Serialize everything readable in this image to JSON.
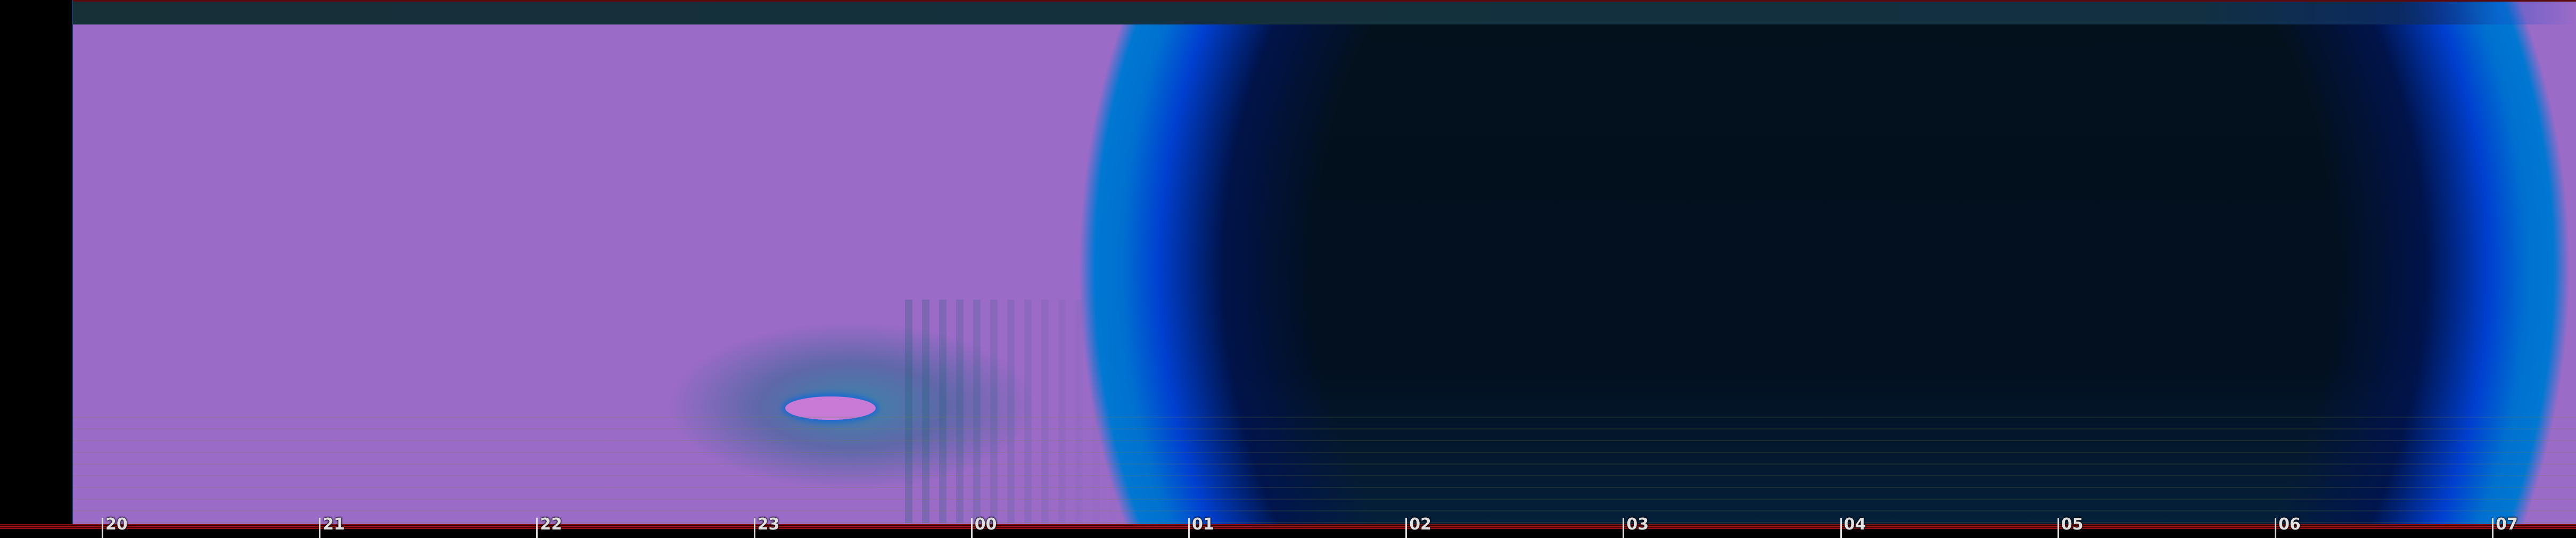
{
  "time_axis": {
    "tick_labels": [
      "20",
      "21",
      "22",
      "23",
      "00",
      "01",
      "02",
      "03",
      "04",
      "05",
      "06",
      "07"
    ]
  },
  "colors": {
    "axis_rule": "#b01818",
    "aurora_core": "#c77ad6",
    "dawn_blue": "#0070d0",
    "dawn_purple": "#9b6bc8",
    "night_sky": "#03111d"
  }
}
